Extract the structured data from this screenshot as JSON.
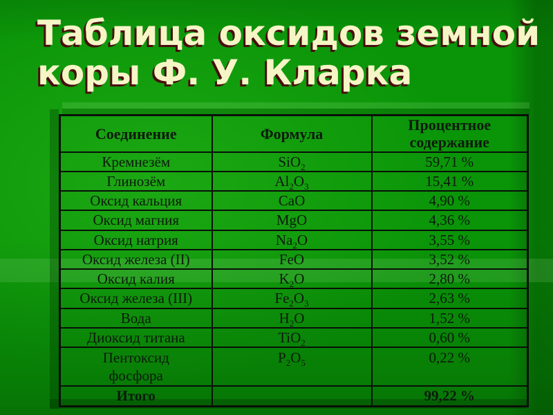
{
  "slide": {
    "title_full": "Таблица оксидов земной коры Ф. У. Кларка",
    "title_lines": [
      "Таблица оксидов земной",
      "коры Ф. У. Кларка"
    ]
  },
  "colors": {
    "background": "#0A9408",
    "title_text": "#F5F5C6",
    "title_shadow": "#4A0D0D",
    "table_line": "#0A0F0A",
    "table_text": "#0D1A0D"
  },
  "table": {
    "columns": [
      "Соединение",
      "Формула",
      "Процентное содержание"
    ],
    "rows": [
      {
        "compound": "Кремнезём",
        "formula": [
          {
            "t": "SiO",
            "sub": "2"
          }
        ],
        "percent": "59,71 %"
      },
      {
        "compound": "Глинозём",
        "formula": [
          {
            "t": "Al",
            "sub": "2"
          },
          {
            "t": "O",
            "sub": "3"
          }
        ],
        "percent": "15,41 %"
      },
      {
        "compound": "Оксид кальция",
        "formula": [
          {
            "t": "CaO"
          }
        ],
        "percent": "4,90 %"
      },
      {
        "compound": "Оксид магния",
        "formula": [
          {
            "t": "MgO"
          }
        ],
        "percent": "4,36 %"
      },
      {
        "compound": "Оксид натрия",
        "formula": [
          {
            "t": "Na",
            "sub": "2"
          },
          {
            "t": "O"
          }
        ],
        "percent": "3,55 %"
      },
      {
        "compound": "Оксид железа (II)",
        "formula": [
          {
            "t": "FeO"
          }
        ],
        "percent": "3,52 %"
      },
      {
        "compound": "Оксид калия",
        "formula": [
          {
            "t": "K",
            "sub": "2"
          },
          {
            "t": "O"
          }
        ],
        "percent": "2,80 %"
      },
      {
        "compound": "Оксид железа (III)",
        "formula": [
          {
            "t": "Fe",
            "sub": "2"
          },
          {
            "t": "O",
            "sub": "3"
          }
        ],
        "percent": "2,63 %"
      },
      {
        "compound": "Вода",
        "formula": [
          {
            "t": "H",
            "sub": "2"
          },
          {
            "t": "O"
          }
        ],
        "percent": "1,52 %"
      },
      {
        "compound": "Диоксид титана",
        "formula": [
          {
            "t": "TiO",
            "sub": "2"
          }
        ],
        "percent": "0,60 %"
      },
      {
        "compound": "Пентоксид\nфосфора",
        "formula": [
          {
            "t": "P",
            "sub": "2"
          },
          {
            "t": "O",
            "sub": "5"
          }
        ],
        "percent": "0,22 %",
        "tall": true
      },
      {
        "compound": "Итого",
        "formula": [],
        "percent": "99,22 %",
        "total": true
      }
    ]
  }
}
